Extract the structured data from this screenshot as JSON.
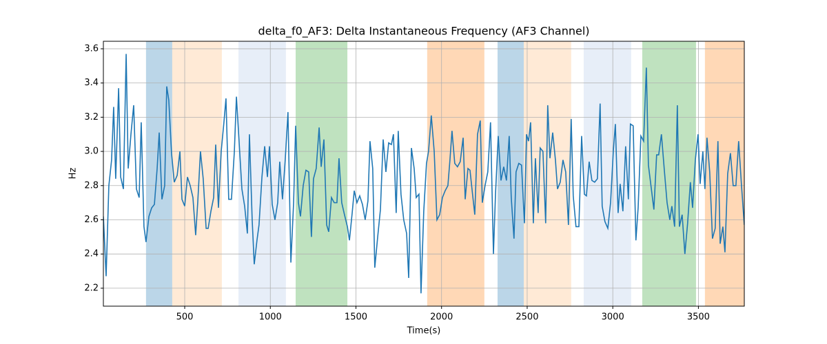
{
  "chart_data": {
    "type": "line",
    "title": "delta_f0_AF3: Delta Instantaneous Frequency (AF3 Channel)",
    "x_label": "Time(s)",
    "y_label": "Hz",
    "xlim": [
      25,
      3768
    ],
    "ylim": [
      2.095,
      3.644
    ],
    "xticks": [
      500,
      1000,
      1500,
      2000,
      2500,
      3000,
      3500
    ],
    "yticks": [
      2.2,
      2.4,
      2.6,
      2.8,
      {
        "value": 3,
        "label": "3.0"
      },
      3.2,
      3.4,
      3.6
    ],
    "grid": true,
    "span_opacity": 0.3,
    "spans": [
      {
        "x": [
          274,
          427
        ],
        "color": "#1f77b4"
      },
      {
        "x": [
          427,
          717
        ],
        "color": "#ffbb78"
      },
      {
        "x": [
          814,
          1091
        ],
        "color": "#aec7e8"
      },
      {
        "x": [
          1148,
          1450
        ],
        "color": "#2ca02c"
      },
      {
        "x": [
          1916,
          2250
        ],
        "color": "#ff7f0e"
      },
      {
        "x": [
          2327,
          2480
        ],
        "color": "#1f77b4"
      },
      {
        "x": [
          2480,
          2757
        ],
        "color": "#ffbb78"
      },
      {
        "x": [
          2830,
          3107
        ],
        "color": "#aec7e8"
      },
      {
        "x": [
          3172,
          3486
        ],
        "color": "#2ca02c"
      },
      {
        "x": [
          3538,
          3768
        ],
        "color": "#ff7f0e"
      }
    ],
    "x": [
      25,
      41,
      57,
      73,
      85,
      97,
      114,
      126,
      142,
      158,
      170,
      186,
      202,
      218,
      234,
      246,
      262,
      274,
      291,
      307,
      323,
      339,
      351,
      367,
      383,
      395,
      407,
      423,
      439,
      456,
      472,
      484,
      500,
      516,
      532,
      548,
      564,
      576,
      592,
      608,
      625,
      637,
      653,
      669,
      681,
      697,
      713,
      729,
      741,
      757,
      773,
      790,
      802,
      818,
      834,
      850,
      866,
      878,
      894,
      906,
      922,
      934,
      951,
      967,
      983,
      995,
      1011,
      1027,
      1043,
      1055,
      1071,
      1087,
      1103,
      1120,
      1136,
      1148,
      1164,
      1176,
      1192,
      1208,
      1224,
      1240,
      1252,
      1268,
      1285,
      1297,
      1313,
      1329,
      1341,
      1357,
      1373,
      1389,
      1401,
      1417,
      1433,
      1450,
      1462,
      1478,
      1490,
      1506,
      1522,
      1538,
      1554,
      1570,
      1582,
      1598,
      1610,
      1627,
      1643,
      1659,
      1675,
      1691,
      1707,
      1719,
      1735,
      1747,
      1763,
      1779,
      1796,
      1808,
      1824,
      1840,
      1852,
      1868,
      1880,
      1896,
      1912,
      1924,
      1940,
      1957,
      1973,
      1989,
      2005,
      2021,
      2037,
      2049,
      2061,
      2077,
      2093,
      2109,
      2126,
      2138,
      2154,
      2166,
      2182,
      2194,
      2210,
      2226,
      2238,
      2254,
      2270,
      2286,
      2303,
      2315,
      2331,
      2347,
      2363,
      2379,
      2395,
      2407,
      2423,
      2435,
      2451,
      2467,
      2484,
      2496,
      2508,
      2520,
      2536,
      2548,
      2564,
      2576,
      2592,
      2608,
      2620,
      2633,
      2649,
      2665,
      2677,
      2693,
      2709,
      2725,
      2741,
      2757,
      2769,
      2785,
      2802,
      2818,
      2834,
      2846,
      2862,
      2878,
      2894,
      2910,
      2926,
      2938,
      2954,
      2971,
      2987,
      3003,
      3015,
      3031,
      3043,
      3059,
      3075,
      3091,
      3103,
      3119,
      3135,
      3148,
      3164,
      3180,
      3196,
      3208,
      3224,
      3240,
      3256,
      3268,
      3284,
      3301,
      3317,
      3333,
      3345,
      3361,
      3377,
      3389,
      3405,
      3421,
      3437,
      3453,
      3466,
      3482,
      3498,
      3510,
      3526,
      3538,
      3550,
      3566,
      3582,
      3598,
      3614,
      3627,
      3643,
      3655,
      3671,
      3687,
      3703,
      3719,
      3735,
      3751,
      3768
    ],
    "series": [
      {
        "color": "#1f77b4",
        "values": [
          2.62,
          2.27,
          2.8,
          2.95,
          3.26,
          2.84,
          3.37,
          2.85,
          2.78,
          3.57,
          2.9,
          3.1,
          3.27,
          2.78,
          2.73,
          3.17,
          2.56,
          2.47,
          2.62,
          2.67,
          2.69,
          2.9,
          3.11,
          2.72,
          2.8,
          3.38,
          3.3,
          2.99,
          2.82,
          2.86,
          3.0,
          2.72,
          2.68,
          2.85,
          2.8,
          2.73,
          2.51,
          2.7,
          3.0,
          2.84,
          2.55,
          2.55,
          2.65,
          2.73,
          3.04,
          2.67,
          3.0,
          3.17,
          3.31,
          2.72,
          2.72,
          3.0,
          3.32,
          3.05,
          2.78,
          2.68,
          2.52,
          3.1,
          2.6,
          2.34,
          2.48,
          2.57,
          2.85,
          3.03,
          2.85,
          3.03,
          2.69,
          2.6,
          2.7,
          2.94,
          2.72,
          2.95,
          3.23,
          2.35,
          2.7,
          3.15,
          2.7,
          2.62,
          2.8,
          2.89,
          2.88,
          2.5,
          2.84,
          2.9,
          3.14,
          2.91,
          3.07,
          2.57,
          2.53,
          2.73,
          2.7,
          2.7,
          2.96,
          2.7,
          2.63,
          2.56,
          2.48,
          2.64,
          2.77,
          2.7,
          2.74,
          2.69,
          2.6,
          2.71,
          3.06,
          2.9,
          2.32,
          2.5,
          2.66,
          3.07,
          2.88,
          3.05,
          3.04,
          3.1,
          2.64,
          3.12,
          2.75,
          2.6,
          2.52,
          2.26,
          3.02,
          2.9,
          2.73,
          2.75,
          2.17,
          2.65,
          2.93,
          3.0,
          3.21,
          3.0,
          2.6,
          2.63,
          2.73,
          2.77,
          2.8,
          2.95,
          3.12,
          2.93,
          2.91,
          2.94,
          3.08,
          2.72,
          2.9,
          2.89,
          2.74,
          2.63,
          3.1,
          3.18,
          2.7,
          2.8,
          2.88,
          3.17,
          2.4,
          2.75,
          3.09,
          2.83,
          2.91,
          2.83,
          3.09,
          2.73,
          2.49,
          2.88,
          2.93,
          2.92,
          2.58,
          3.1,
          3.06,
          3.17,
          2.58,
          2.96,
          2.64,
          3.02,
          3.0,
          2.58,
          3.27,
          2.96,
          3.11,
          2.95,
          2.78,
          2.82,
          2.95,
          2.88,
          2.57,
          3.19,
          2.74,
          2.56,
          2.56,
          3.09,
          2.75,
          2.74,
          2.94,
          2.83,
          2.82,
          2.84,
          3.28,
          2.68,
          2.59,
          2.55,
          2.7,
          3.0,
          3.16,
          2.64,
          2.81,
          2.65,
          3.03,
          2.72,
          3.16,
          3.15,
          2.48,
          2.67,
          3.09,
          3.06,
          3.49,
          2.92,
          2.79,
          2.66,
          2.98,
          2.98,
          3.1,
          2.89,
          2.7,
          2.6,
          2.68,
          2.56,
          3.27,
          2.56,
          2.63,
          2.4,
          2.58,
          2.82,
          2.67,
          2.95,
          3.1,
          2.81,
          3.0,
          2.78,
          3.08,
          2.88,
          2.49,
          2.55,
          3.06,
          2.46,
          2.56,
          2.41,
          2.87,
          2.99,
          2.8,
          2.8,
          3.06,
          2.81,
          2.57
        ]
      }
    ]
  }
}
